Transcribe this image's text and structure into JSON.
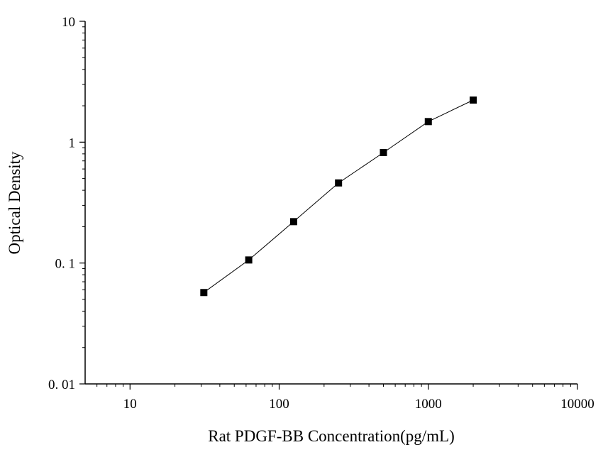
{
  "chart_data": {
    "type": "line",
    "title": "",
    "xlabel": "Rat PDGF-BB Concentration(pg/mL)",
    "ylabel": "Optical Density",
    "xscale": "log",
    "yscale": "log",
    "xlim": [
      5,
      10000
    ],
    "ylim": [
      0.01,
      10
    ],
    "xticks": [
      10,
      100,
      1000,
      10000
    ],
    "xtick_labels": [
      "10",
      "100",
      "1000",
      "10000"
    ],
    "yticks": [
      0.01,
      0.1,
      1,
      10
    ],
    "ytick_labels": [
      "0. 01",
      "0. 1",
      "1",
      "10"
    ],
    "grid": false,
    "legend": "none",
    "marker": "square",
    "series": [
      {
        "x": [
          31.25,
          62.5,
          125,
          250,
          500,
          1000,
          2000
        ],
        "y": [
          0.057,
          0.106,
          0.22,
          0.46,
          0.82,
          1.48,
          2.23
        ]
      }
    ],
    "colors": {
      "line": "#000000",
      "marker": "#000000",
      "axis": "#000000"
    }
  }
}
